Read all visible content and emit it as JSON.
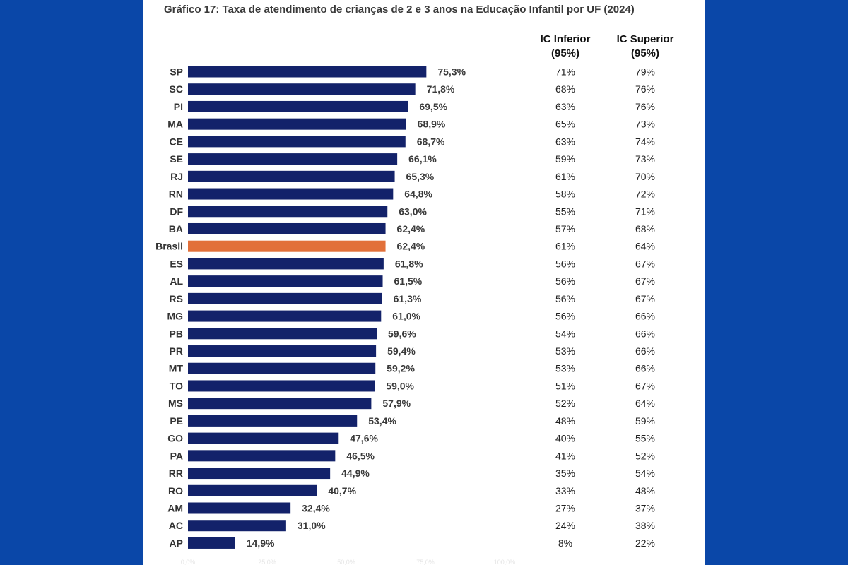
{
  "chart_data": {
    "type": "bar",
    "orientation": "horizontal",
    "title": "Gráfico 17: Taxa de atendimento de crianças de 2 e 3 anos na Educação Infantil por UF (2024)",
    "xlim": [
      0,
      100
    ],
    "x_ticks": [
      "0,0%",
      "25,0%",
      "50,0%",
      "75,0%",
      "100,0%"
    ],
    "grid": false,
    "colors": {
      "default": "#13226a",
      "highlight": "#e2703a"
    },
    "highlight_category": "Brasil",
    "categories": [
      "SP",
      "SC",
      "PI",
      "MA",
      "CE",
      "SE",
      "RJ",
      "RN",
      "DF",
      "BA",
      "Brasil",
      "ES",
      "AL",
      "RS",
      "MG",
      "PB",
      "PR",
      "MT",
      "TO",
      "MS",
      "PE",
      "GO",
      "PA",
      "RR",
      "RO",
      "AM",
      "AC",
      "AP"
    ],
    "values": [
      75.3,
      71.8,
      69.5,
      68.9,
      68.7,
      66.1,
      65.3,
      64.8,
      63.0,
      62.4,
      62.4,
      61.8,
      61.5,
      61.3,
      61.0,
      59.6,
      59.4,
      59.2,
      59.0,
      57.9,
      53.4,
      47.6,
      46.5,
      44.9,
      40.7,
      32.4,
      31.0,
      14.9
    ],
    "value_labels": [
      "75,3%",
      "71,8%",
      "69,5%",
      "68,9%",
      "68,7%",
      "66,1%",
      "65,3%",
      "64,8%",
      "63,0%",
      "62,4%",
      "62,4%",
      "61,8%",
      "61,5%",
      "61,3%",
      "61,0%",
      "59,6%",
      "59,4%",
      "59,2%",
      "59,0%",
      "57,9%",
      "53,4%",
      "47,6%",
      "46,5%",
      "44,9%",
      "40,7%",
      "32,4%",
      "31,0%",
      "14,9%"
    ],
    "table": {
      "headers": [
        {
          "line1": "IC Inferior",
          "line2": "(95%)"
        },
        {
          "line1": "IC Superior",
          "line2": "(95%)"
        }
      ],
      "ic_inferior": [
        "71%",
        "68%",
        "63%",
        "65%",
        "63%",
        "59%",
        "61%",
        "58%",
        "55%",
        "57%",
        "61%",
        "56%",
        "56%",
        "56%",
        "56%",
        "54%",
        "53%",
        "53%",
        "51%",
        "52%",
        "48%",
        "40%",
        "41%",
        "35%",
        "33%",
        "27%",
        "24%",
        "8%"
      ],
      "ic_superior": [
        "79%",
        "76%",
        "76%",
        "73%",
        "74%",
        "73%",
        "70%",
        "72%",
        "71%",
        "68%",
        "64%",
        "67%",
        "67%",
        "67%",
        "66%",
        "66%",
        "66%",
        "66%",
        "67%",
        "64%",
        "59%",
        "55%",
        "52%",
        "54%",
        "48%",
        "37%",
        "38%",
        "22%"
      ]
    }
  }
}
